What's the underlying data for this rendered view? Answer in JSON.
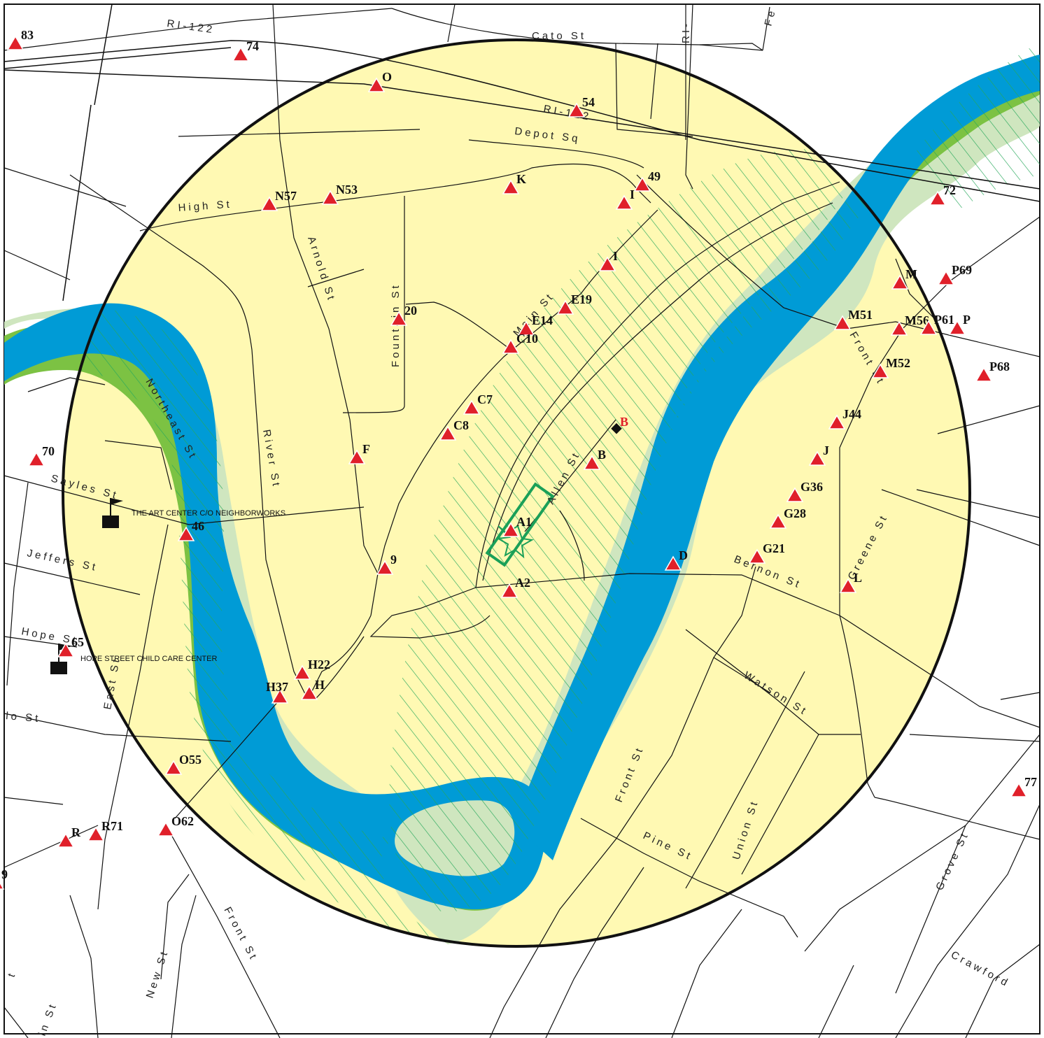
{
  "map": {
    "colors": {
      "buffer_fill": "#fff9b3",
      "river": "#009bd6",
      "floodway": "#7cc243",
      "floodplain": "#cfe6bf",
      "hatch": "#27a85b",
      "site_marker": "#e0202a",
      "boundary": "#111111"
    },
    "streets": {
      "cato": "Cato St",
      "ri122_a": "RI-122",
      "ri122_b": "RI-122",
      "ri_top": "RI-",
      "fe": "Fe",
      "depot": "Depot Sq",
      "high": "High St",
      "arnold": "Arnold St",
      "fountain": "Fountain St",
      "main": "Main St",
      "northeast": "Northeast St",
      "river": "River St",
      "sayles": "Sayles St",
      "jeffers": "Jeffers St",
      "hope": "Hope St",
      "east": "East St",
      "allen": "Allen St",
      "front_e": "Front St",
      "bernon": "Bernon St",
      "greene": "Greene St",
      "watson": "Watson St",
      "front_s": "Front St",
      "pine": "Pine St",
      "union": "Union St",
      "grove": "Grove St",
      "crawford": "Crawford",
      "front_sw": "Front St",
      "new": "New St",
      "lo": "lo St",
      "ln": "ln St",
      "t": "t"
    },
    "facilities": {
      "art_center": "THE ART CENTER C/O NEIGHBORWORKS",
      "hope_child": "HOPE STREET CHILD CARE CENTER"
    },
    "target_label": "B",
    "sites": [
      {
        "label": "83"
      },
      {
        "label": "74"
      },
      {
        "label": "O"
      },
      {
        "label": "54"
      },
      {
        "label": "49"
      },
      {
        "label": "I"
      },
      {
        "label": "K"
      },
      {
        "label": "N53"
      },
      {
        "label": "N57"
      },
      {
        "label": "I"
      },
      {
        "label": "72"
      },
      {
        "label": "M"
      },
      {
        "label": "P69"
      },
      {
        "label": "E19"
      },
      {
        "label": "E14"
      },
      {
        "label": "C10"
      },
      {
        "label": "20"
      },
      {
        "label": "M51"
      },
      {
        "label": "M56"
      },
      {
        "label": "P61"
      },
      {
        "label": "P"
      },
      {
        "label": "M52"
      },
      {
        "label": "P68"
      },
      {
        "label": "C7"
      },
      {
        "label": "C8"
      },
      {
        "label": "J44"
      },
      {
        "label": "F"
      },
      {
        "label": "B"
      },
      {
        "label": "J"
      },
      {
        "label": "70"
      },
      {
        "label": "G36"
      },
      {
        "label": "G28"
      },
      {
        "label": "A1"
      },
      {
        "label": "46"
      },
      {
        "label": "G21"
      },
      {
        "label": "D"
      },
      {
        "label": "9"
      },
      {
        "label": "A2"
      },
      {
        "label": "L"
      },
      {
        "label": "65"
      },
      {
        "label": "H22"
      },
      {
        "label": "H37"
      },
      {
        "label": "H"
      },
      {
        "label": "O55"
      },
      {
        "label": "O62"
      },
      {
        "label": "R71"
      },
      {
        "label": "R"
      },
      {
        "label": "77"
      },
      {
        "label": "9"
      }
    ]
  }
}
